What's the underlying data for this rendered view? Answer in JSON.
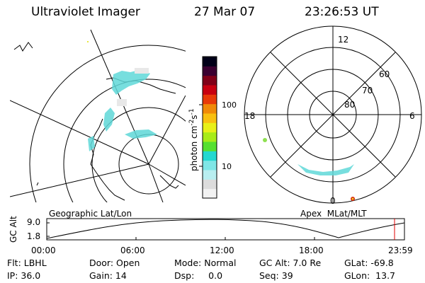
{
  "header": {
    "instrument": "Ultraviolet Imager",
    "date": "27 Mar 07",
    "time": "23:26:53 UT"
  },
  "geo_panel": {
    "label": "Geographic Lat/Lon"
  },
  "colorbar": {
    "unit": "photon cm",
    "unit_sup": "-2",
    "unit_mid": "s",
    "unit_sup2": "-1",
    "ticks": [
      {
        "label": "100"
      },
      {
        "label": "10"
      }
    ],
    "colors": [
      "#f2f2f2",
      "#dcdcdc",
      "#b8eef0",
      "#7fe6e6",
      "#22d8d0",
      "#55e030",
      "#a8ec18",
      "#e8f018",
      "#f8c010",
      "#f08a08",
      "#e83a08",
      "#c80010",
      "#800018",
      "#3a0030",
      "#000018"
    ]
  },
  "mlt_panel": {
    "label": "Apex  MLat/MLT",
    "mlt_labels": [
      "12",
      "18",
      "6",
      "0"
    ],
    "lat_labels": [
      "60",
      "70",
      "80"
    ]
  },
  "altitude_plot": {
    "ylabel": "GC Alt",
    "yticks": [
      "9.0",
      "1.8"
    ],
    "xticks": [
      "00:00",
      "06:00",
      "12:00",
      "18:00",
      "23:59"
    ],
    "marker_color": "#e00000"
  },
  "info": {
    "filter": "Flt: LBHL",
    "ip": "IP: 36.0",
    "door": "Door: Open",
    "gain": "Gain: 14",
    "mode": "Mode: Normal",
    "dsp": "Dsp:     0.0",
    "gcalt": "GC Alt: 7.0 Re",
    "seq": "Seq: 39",
    "glat": "GLat: -69.8",
    "glon": "GLon:  13.7"
  }
}
